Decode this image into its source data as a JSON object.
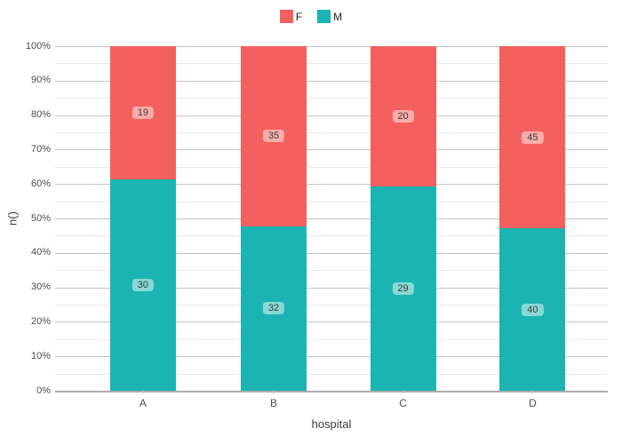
{
  "chart_data": {
    "type": "bar",
    "subtype": "percent-stacked",
    "title": "",
    "xlabel": "hospital",
    "ylabel": "n()",
    "categories": [
      "A",
      "B",
      "C",
      "D"
    ],
    "series": [
      {
        "name": "F",
        "color": "#F4605D",
        "values": [
          19,
          35,
          20,
          45
        ]
      },
      {
        "name": "M",
        "color": "#1BB4B2",
        "values": [
          30,
          32,
          29,
          40
        ]
      }
    ],
    "y_ticks": [
      "0%",
      "10%",
      "20%",
      "30%",
      "40%",
      "50%",
      "60%",
      "70%",
      "80%",
      "90%",
      "100%"
    ],
    "ylim": [
      0,
      100
    ],
    "y_unit": "percent",
    "minor_grid_step": 5,
    "major_grid_step": 10,
    "grid": true,
    "legend_position": "top",
    "bar_labels_shown": true
  }
}
